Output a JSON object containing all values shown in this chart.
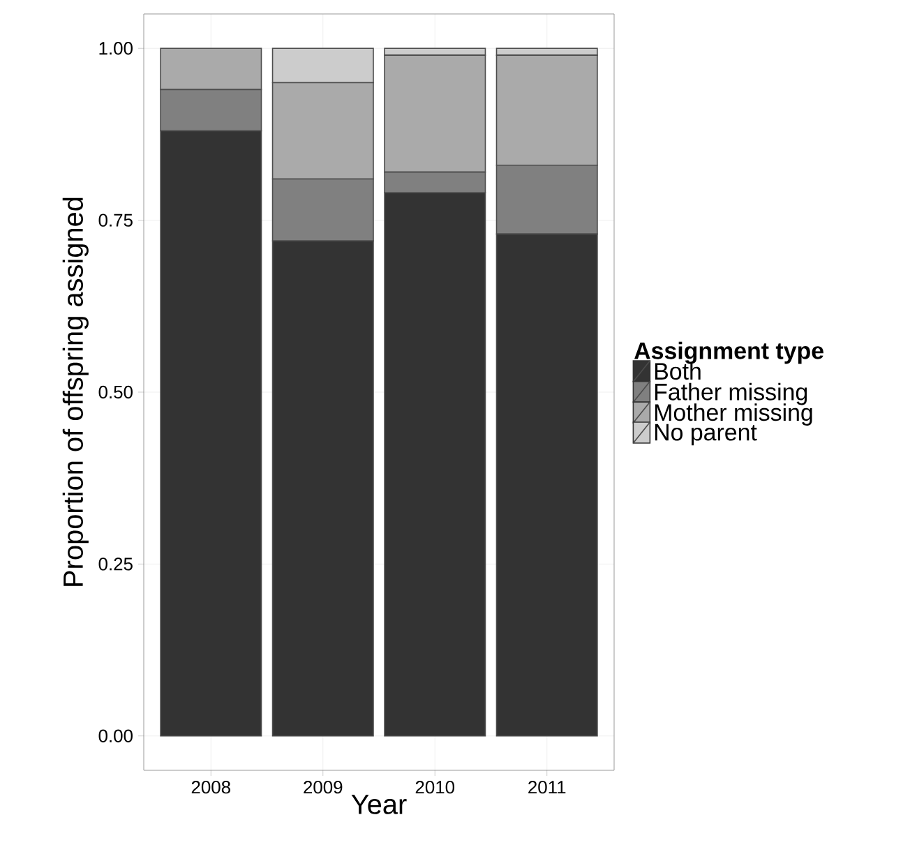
{
  "chart_data": {
    "type": "bar",
    "stacked": true,
    "xlabel": "Year",
    "ylabel": "Proportion of offspring assigned",
    "legend_title": "Assignment type",
    "legend": "right",
    "grid": true,
    "categories": [
      "2008",
      "2009",
      "2010",
      "2011"
    ],
    "ylim": [
      -0.05,
      1.05
    ],
    "yticks": [
      {
        "value": 0,
        "label": "0.00"
      },
      {
        "value": 0.25,
        "label": "0.25"
      },
      {
        "value": 0.5,
        "label": "0.50"
      },
      {
        "value": 0.75,
        "label": "0.75"
      },
      {
        "value": 1,
        "label": "1.00"
      }
    ],
    "series": [
      {
        "name": "Both",
        "color": "#333333",
        "values": [
          0.88,
          0.72,
          0.79,
          0.73
        ]
      },
      {
        "name": "Father missing",
        "color": "#808080",
        "values": [
          0.06,
          0.09,
          0.03,
          0.1
        ]
      },
      {
        "name": "Mother missing",
        "color": "#aaaaaa",
        "values": [
          0.06,
          0.14,
          0.17,
          0.16
        ]
      },
      {
        "name": "No parent",
        "color": "#cccccc",
        "values": [
          0,
          0.05,
          0.01,
          0.01
        ]
      }
    ]
  }
}
